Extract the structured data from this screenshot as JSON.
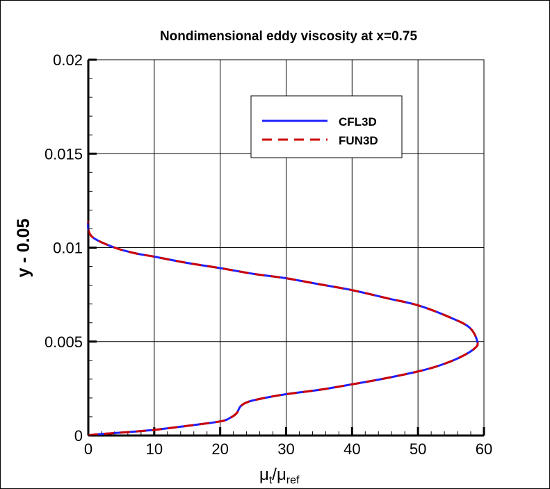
{
  "chart_data": {
    "type": "line",
    "title": "Nondimensional eddy viscosity at x=0.75",
    "xlabel": {
      "base": "μ",
      "sub1": "t",
      "sep": "/μ",
      "sub2": "ref"
    },
    "ylabel": "y - 0.05",
    "xlim": [
      0,
      60
    ],
    "ylim": [
      0,
      0.02
    ],
    "x_ticks": [
      "0",
      "10",
      "20",
      "30",
      "40",
      "50",
      "60"
    ],
    "y_ticks": [
      "0",
      "0.005",
      "0.01",
      "0.015",
      "0.02"
    ],
    "grid": true,
    "legend_position": "top-center",
    "series": [
      {
        "name": "CFL3D",
        "color": "#2020ff",
        "style": "solid"
      },
      {
        "name": "FUN3D",
        "color": "#cc0000",
        "style": "dashed"
      }
    ],
    "points": [
      [
        0.0,
        1e-05
      ],
      [
        1.6,
        7e-05
      ],
      [
        5.2,
        0.00016
      ],
      [
        10,
        0.0003
      ],
      [
        14.9,
        0.00051
      ],
      [
        20,
        0.00075
      ],
      [
        21.5,
        0.00094
      ],
      [
        22.5,
        0.00119
      ],
      [
        23.1,
        0.00156
      ],
      [
        24.3,
        0.0018
      ],
      [
        26.6,
        0.00199
      ],
      [
        30,
        0.0022
      ],
      [
        35.2,
        0.00244
      ],
      [
        40.1,
        0.00273
      ],
      [
        45,
        0.00304
      ],
      [
        50,
        0.00341
      ],
      [
        53.2,
        0.00372
      ],
      [
        56.3,
        0.00415
      ],
      [
        58.6,
        0.00464
      ],
      [
        59,
        0.005
      ],
      [
        57.8,
        0.00575
      ],
      [
        54.7,
        0.00631
      ],
      [
        50,
        0.00693
      ],
      [
        45.4,
        0.0073
      ],
      [
        40.1,
        0.00773
      ],
      [
        35.2,
        0.00804
      ],
      [
        30,
        0.00837
      ],
      [
        25.1,
        0.0086
      ],
      [
        20,
        0.00891
      ],
      [
        14.9,
        0.00919
      ],
      [
        10,
        0.00952
      ],
      [
        7.1,
        0.0097
      ],
      [
        4.0,
        0.01
      ],
      [
        0.86,
        0.0105
      ],
      [
        0.02,
        0.01094
      ],
      [
        0.0,
        0.01143
      ]
    ]
  }
}
